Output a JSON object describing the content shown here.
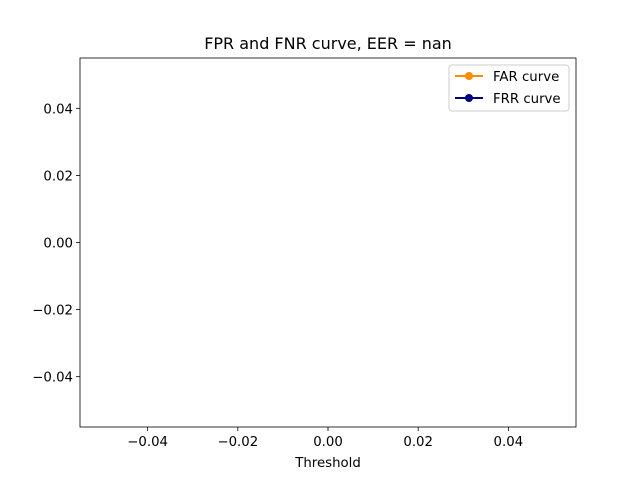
{
  "chart_data": {
    "type": "line",
    "title": "FPR and FNR curve, EER = nan",
    "xlabel": "Threshold",
    "ylabel": "",
    "xlim": [
      -0.055,
      0.055
    ],
    "ylim": [
      -0.055,
      0.055
    ],
    "x_ticks": [
      -0.04,
      -0.02,
      0.0,
      0.02,
      0.04
    ],
    "x_tick_labels": [
      "−0.04",
      "−0.02",
      "0.00",
      "0.02",
      "0.04"
    ],
    "y_ticks": [
      -0.04,
      -0.02,
      0.0,
      0.02,
      0.04
    ],
    "y_tick_labels": [
      "−0.04",
      "−0.02",
      "0.00",
      "0.02",
      "0.04"
    ],
    "grid": false,
    "legend_position": "top-right",
    "series": [
      {
        "name": "FAR curve",
        "color": "#ff8c00",
        "marker": "circle",
        "x": [],
        "y": []
      },
      {
        "name": "FRR curve",
        "color": "#000080",
        "marker": "circle",
        "x": [],
        "y": []
      }
    ]
  }
}
